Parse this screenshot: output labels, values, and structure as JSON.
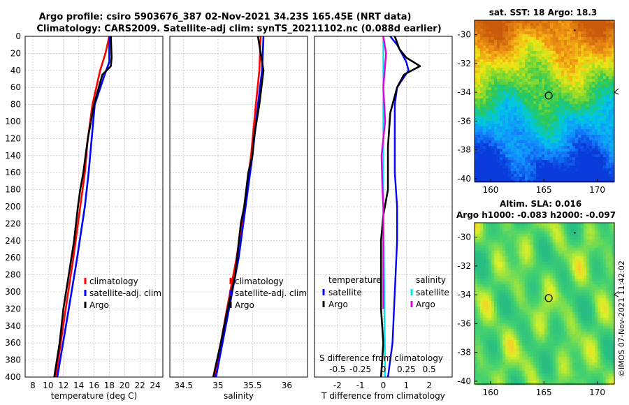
{
  "title_line1": "Argo profile: csiro 5903676_387 02-Nov-2021 34.23S 165.45E (NRT data)",
  "title_line2": "Climatology: CARS2009. Satellite-adj clim: synTS_20211102.nc (0.088d earlier)",
  "colors": {
    "climatology": "#ff0000",
    "satellite": "#0000ff",
    "argo": "#000000",
    "sal_sat": "#00e5e5",
    "sal_argo": "#e000e0"
  },
  "chart_data": [
    {
      "type": "line",
      "name": "temperature-profile",
      "xlabel": "temperature (deg C)",
      "xlim": [
        7,
        25
      ],
      "xticks": [
        8,
        10,
        12,
        14,
        16,
        18,
        20,
        22,
        24
      ],
      "ylim": [
        0,
        400
      ],
      "yticks": [
        0,
        20,
        40,
        60,
        80,
        100,
        120,
        140,
        160,
        180,
        200,
        220,
        240,
        260,
        280,
        300,
        320,
        340,
        360,
        380,
        400
      ],
      "legend": [
        "climatology",
        "satellite-adj. clim",
        "Argo"
      ],
      "series": [
        {
          "name": "climatology",
          "depth": [
            0,
            20,
            40,
            80,
            120,
            160,
            200,
            260,
            320,
            400
          ],
          "values": [
            18.0,
            17.5,
            16.8,
            15.8,
            15.2,
            14.8,
            14.2,
            13.3,
            12.3,
            11.0
          ]
        },
        {
          "name": "satellite-adj. clim",
          "depth": [
            0,
            20,
            30,
            45,
            80,
            120,
            160,
            200,
            260,
            320,
            400
          ],
          "values": [
            18.0,
            18.0,
            18.0,
            17.4,
            16.1,
            15.7,
            15.3,
            14.8,
            13.8,
            12.7,
            11.2
          ]
        },
        {
          "name": "Argo",
          "depth": [
            0,
            25,
            35,
            45,
            80,
            120,
            160,
            180,
            200,
            240,
            280,
            320,
            360,
            400
          ],
          "values": [
            18.2,
            18.3,
            18.2,
            17.1,
            16.0,
            15.2,
            14.6,
            14.2,
            13.9,
            13.4,
            12.7,
            12.0,
            11.5,
            10.8
          ]
        }
      ]
    },
    {
      "type": "line",
      "name": "salinity-profile",
      "xlabel": "salinity",
      "xlim": [
        34.3,
        36.3
      ],
      "xticks": [
        34.5,
        35,
        35.5,
        36
      ],
      "ylim": [
        0,
        400
      ],
      "legend": [
        "climatology",
        "satellite-adj. clim",
        "Argo"
      ],
      "series": [
        {
          "name": "climatology",
          "depth": [
            0,
            40,
            80,
            140,
            200,
            260,
            320,
            400
          ],
          "values": [
            35.62,
            35.6,
            35.55,
            35.48,
            35.38,
            35.27,
            35.13,
            34.95
          ]
        },
        {
          "name": "satellite-adj. clim",
          "depth": [
            0,
            40,
            80,
            140,
            200,
            260,
            320,
            400
          ],
          "values": [
            35.66,
            35.64,
            35.58,
            35.5,
            35.4,
            35.3,
            35.16,
            34.97
          ]
        },
        {
          "name": "Argo",
          "depth": [
            0,
            20,
            40,
            80,
            120,
            140,
            160,
            200,
            220,
            280,
            320,
            360,
            400
          ],
          "values": [
            35.58,
            35.62,
            35.66,
            35.6,
            35.52,
            35.5,
            35.44,
            35.38,
            35.33,
            35.25,
            35.14,
            35.04,
            34.93
          ]
        }
      ]
    },
    {
      "type": "line",
      "name": "difference-profile",
      "xlabel": "T difference from climatology",
      "x2label": "S difference from climatology",
      "xlim": [
        -3,
        3
      ],
      "xticks": [
        -2,
        -1,
        0,
        1,
        2
      ],
      "x2ticks": [
        -0.5,
        -0.25,
        0,
        0.25,
        0.5
      ],
      "ylim": [
        0,
        400
      ],
      "legend_temperature_title": "temperature",
      "legend_salinity_title": "salinity",
      "legend_temperature": [
        "satellite",
        "Argo"
      ],
      "legend_salinity": [
        "satellite",
        "Argo"
      ],
      "series": [
        {
          "name": "T satellite",
          "depth": [
            0,
            10,
            20,
            30,
            40,
            60,
            80,
            120,
            160,
            200,
            240,
            300,
            360,
            400
          ],
          "values": [
            0.3,
            0.6,
            0.8,
            1.0,
            1.1,
            0.6,
            0.5,
            0.5,
            0.5,
            0.6,
            0.6,
            0.5,
            0.4,
            0.2
          ]
        },
        {
          "name": "T Argo",
          "depth": [
            0,
            15,
            25,
            35,
            45,
            60,
            90,
            130,
            180,
            210,
            240,
            280,
            320,
            360,
            400
          ],
          "values": [
            0.5,
            0.7,
            1.0,
            1.6,
            0.9,
            0.6,
            0.3,
            0.2,
            0.2,
            0.0,
            -0.1,
            -0.1,
            -0.1,
            0.0,
            -0.1
          ]
        },
        {
          "name": "S satellite",
          "depth": [
            0,
            20,
            80,
            200,
            300,
            400
          ],
          "values": [
            0.0,
            0.0,
            0.0,
            0.0,
            0.01,
            0.02
          ]
        },
        {
          "name": "S Argo",
          "depth": [
            0,
            20,
            60,
            100,
            140,
            180,
            200,
            260,
            300,
            320
          ],
          "values": [
            0.0,
            0.03,
            0.0,
            0.02,
            -0.02,
            -0.01,
            0.0,
            0.0,
            0.0,
            0.0
          ]
        }
      ]
    }
  ],
  "map_sst": {
    "title": "sat. SST: 18 Argo: 18.3",
    "yticks": [
      "-30",
      "-32",
      "-34",
      "-36",
      "-38",
      "-40"
    ],
    "xticks": [
      "160",
      "165",
      "170"
    ]
  },
  "map_sla": {
    "title1": "Altim. SLA: 0.016",
    "title2": "Argo h1000: -0.083 h2000: -0.097",
    "yticks": [
      "-30",
      "-32",
      "-34",
      "-36",
      "-38",
      "-40"
    ],
    "xticks": [
      "160",
      "165",
      "170"
    ]
  },
  "copyright": "©IMOS 07-Nov-2021 11:42:02"
}
